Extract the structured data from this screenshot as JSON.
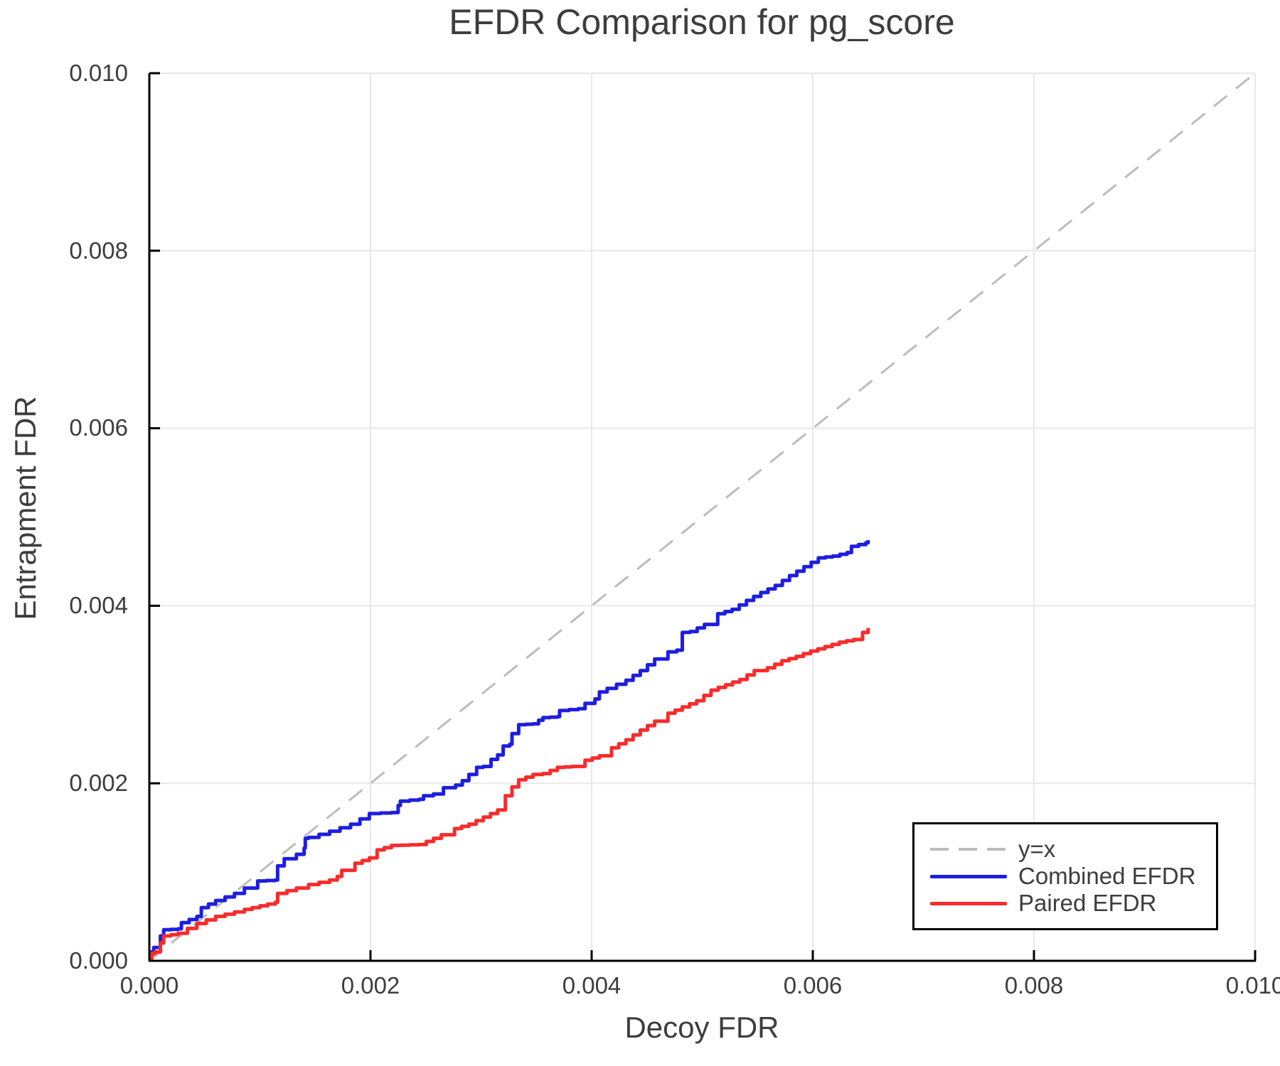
{
  "chart_data": {
    "type": "line",
    "title": "EFDR Comparison for pg_score",
    "xlabel": "Decoy FDR",
    "ylabel": "Entrapment FDR",
    "xlim": [
      0,
      0.01
    ],
    "ylim": [
      0,
      0.01
    ],
    "x_ticks": [
      0,
      0.002,
      0.004,
      0.006,
      0.008,
      0.01
    ],
    "y_ticks": [
      0,
      0.002,
      0.004,
      0.006,
      0.008,
      0.01
    ],
    "x_tick_labels": [
      "0.000",
      "0.002",
      "0.004",
      "0.006",
      "0.008",
      "0.010"
    ],
    "y_tick_labels": [
      "0.000",
      "0.002",
      "0.004",
      "0.006",
      "0.008",
      "0.010"
    ],
    "grid": true,
    "legend_position": "lower right",
    "colors": {
      "grid": "#e8e8e8",
      "axis": "#000000",
      "text": "#3d3d3d",
      "background": "#ffffff"
    },
    "reference_line": {
      "label": "y=x",
      "style": "dashed",
      "color": "#bcbcbc",
      "from": [
        0,
        0
      ],
      "to": [
        0.01,
        0.01
      ]
    },
    "series": [
      {
        "name": "Combined EFDR",
        "color": "#1e1ee0",
        "style": "step",
        "points": [
          [
            0.0,
            2e-05
          ],
          [
            2e-05,
            0.0001
          ],
          [
            4e-05,
            0.00015
          ],
          [
            0.0001,
            0.00028
          ],
          [
            0.00013,
            0.00035
          ],
          [
            0.00026,
            0.00036
          ],
          [
            0.00029,
            0.00043
          ],
          [
            0.00043,
            0.0005
          ],
          [
            0.00047,
            0.0006
          ],
          [
            0.0006,
            0.00068
          ],
          [
            0.00077,
            0.00076
          ],
          [
            0.00086,
            0.00082
          ],
          [
            0.00098,
            0.0009
          ],
          [
            0.00114,
            0.00091
          ],
          [
            0.00116,
            0.00107
          ],
          [
            0.00122,
            0.00115
          ],
          [
            0.00133,
            0.0012
          ],
          [
            0.0014,
            0.00127
          ],
          [
            0.00141,
            0.00138
          ],
          [
            0.00144,
            0.00139
          ],
          [
            0.00163,
            0.00146
          ],
          [
            0.00182,
            0.00154
          ],
          [
            0.00199,
            0.00166
          ],
          [
            0.00219,
            0.00167
          ],
          [
            0.00225,
            0.00175
          ],
          [
            0.00227,
            0.0018
          ],
          [
            0.00244,
            0.00182
          ],
          [
            0.00248,
            0.00186
          ],
          [
            0.00257,
            0.00188
          ],
          [
            0.00266,
            0.00195
          ],
          [
            0.00277,
            0.00198
          ],
          [
            0.00283,
            0.00203
          ],
          [
            0.00289,
            0.0021
          ],
          [
            0.00296,
            0.00218
          ],
          [
            0.00302,
            0.00219
          ],
          [
            0.00309,
            0.00227
          ],
          [
            0.00315,
            0.00232
          ],
          [
            0.0032,
            0.00242
          ],
          [
            0.00326,
            0.00244
          ],
          [
            0.00328,
            0.00256
          ],
          [
            0.00334,
            0.00266
          ],
          [
            0.00347,
            0.00267
          ],
          [
            0.00352,
            0.00271
          ],
          [
            0.00356,
            0.00274
          ],
          [
            0.00369,
            0.00275
          ],
          [
            0.00371,
            0.00282
          ],
          [
            0.00388,
            0.00284
          ],
          [
            0.00394,
            0.0029
          ],
          [
            0.00403,
            0.00295
          ],
          [
            0.00407,
            0.00303
          ],
          [
            0.00414,
            0.00307
          ],
          [
            0.00431,
            0.00316
          ],
          [
            0.00444,
            0.00327
          ],
          [
            0.00457,
            0.0034
          ],
          [
            0.00469,
            0.00348
          ],
          [
            0.00477,
            0.0035
          ],
          [
            0.00482,
            0.0037
          ],
          [
            0.00489,
            0.00371
          ],
          [
            0.00502,
            0.00379
          ],
          [
            0.00514,
            0.00391
          ],
          [
            0.00527,
            0.00396
          ],
          [
            0.0054,
            0.00406
          ],
          [
            0.00553,
            0.00415
          ],
          [
            0.00566,
            0.00423
          ],
          [
            0.00579,
            0.00434
          ],
          [
            0.00592,
            0.00444
          ],
          [
            0.00605,
            0.00454
          ],
          [
            0.00618,
            0.00456
          ],
          [
            0.00631,
            0.0046
          ],
          [
            0.00635,
            0.00467
          ],
          [
            0.00648,
            0.00471
          ],
          [
            0.0065,
            0.00474
          ]
        ]
      },
      {
        "name": "Paired EFDR",
        "color": "#f72c2c",
        "style": "step",
        "points": [
          [
            0.0,
            1e-05
          ],
          [
            2e-05,
            8e-05
          ],
          [
            5e-05,
            0.0001
          ],
          [
            0.0001,
            0.0002
          ],
          [
            0.00013,
            0.00028
          ],
          [
            0.00026,
            0.00031
          ],
          [
            0.00043,
            0.00042
          ],
          [
            0.0006,
            0.0005
          ],
          [
            0.00077,
            0.00055
          ],
          [
            0.00086,
            0.00058
          ],
          [
            0.001,
            0.00062
          ],
          [
            0.00114,
            0.00066
          ],
          [
            0.00116,
            0.00076
          ],
          [
            0.00133,
            0.00082
          ],
          [
            0.00144,
            0.00086
          ],
          [
            0.00163,
            0.00091
          ],
          [
            0.0017,
            0.00095
          ],
          [
            0.00174,
            0.00102
          ],
          [
            0.00186,
            0.0011
          ],
          [
            0.00199,
            0.00116
          ],
          [
            0.00206,
            0.00125
          ],
          [
            0.00219,
            0.0013
          ],
          [
            0.00244,
            0.00131
          ],
          [
            0.00257,
            0.00138
          ],
          [
            0.00264,
            0.00142
          ],
          [
            0.00276,
            0.00149
          ],
          [
            0.00289,
            0.00154
          ],
          [
            0.00302,
            0.00162
          ],
          [
            0.00315,
            0.0017
          ],
          [
            0.00322,
            0.00186
          ],
          [
            0.00328,
            0.00196
          ],
          [
            0.00334,
            0.00204
          ],
          [
            0.00347,
            0.0021
          ],
          [
            0.00356,
            0.00211
          ],
          [
            0.00369,
            0.00218
          ],
          [
            0.00382,
            0.00219
          ],
          [
            0.00394,
            0.00226
          ],
          [
            0.00407,
            0.00231
          ],
          [
            0.00418,
            0.0024
          ],
          [
            0.00431,
            0.00249
          ],
          [
            0.00444,
            0.0026
          ],
          [
            0.00457,
            0.0027
          ],
          [
            0.00469,
            0.00279
          ],
          [
            0.00482,
            0.00286
          ],
          [
            0.00495,
            0.00293
          ],
          [
            0.00508,
            0.00305
          ],
          [
            0.00521,
            0.00311
          ],
          [
            0.00534,
            0.00317
          ],
          [
            0.00547,
            0.00327
          ],
          [
            0.00559,
            0.0033
          ],
          [
            0.00572,
            0.00338
          ],
          [
            0.00585,
            0.00343
          ],
          [
            0.00598,
            0.00349
          ],
          [
            0.00611,
            0.00354
          ],
          [
            0.00624,
            0.00359
          ],
          [
            0.00637,
            0.00362
          ],
          [
            0.00645,
            0.0037
          ],
          [
            0.0065,
            0.00375
          ]
        ]
      }
    ]
  }
}
